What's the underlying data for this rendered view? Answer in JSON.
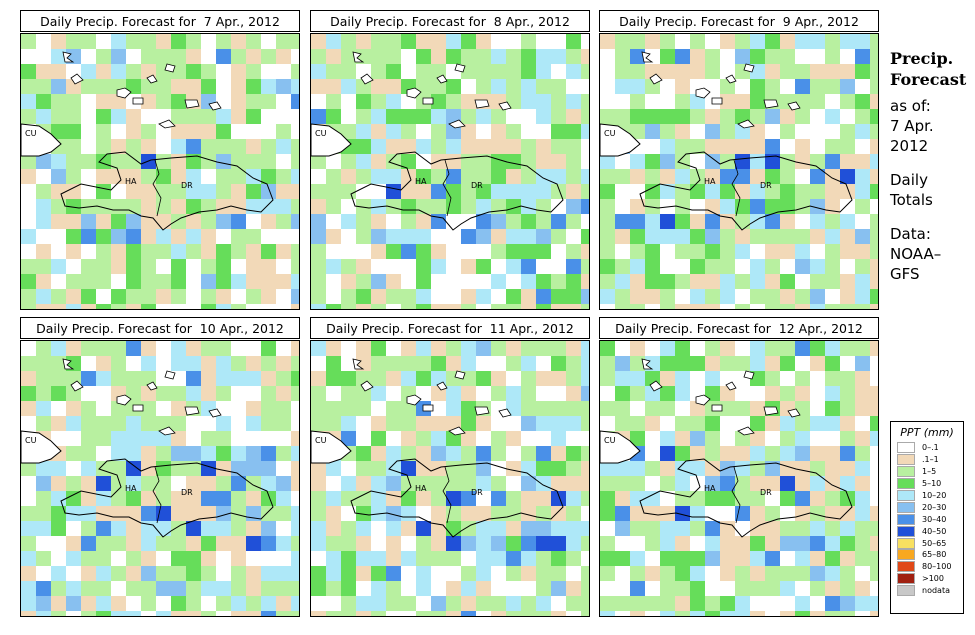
{
  "panels": [
    {
      "title": "Daily Precip. Forecast for  7 Apr., 2012",
      "seed": 7,
      "wet": 0.08
    },
    {
      "title": "Daily Precip. Forecast for  8 Apr., 2012",
      "seed": 8,
      "wet": 0.14
    },
    {
      "title": "Daily Precip. Forecast for  9 Apr., 2012",
      "seed": 9,
      "wet": 0.18
    },
    {
      "title": "Daily Precip. Forecast for  10 Apr., 2012",
      "seed": 10,
      "wet": 0.28
    },
    {
      "title": "Daily Precip. Forecast for  11 Apr., 2012",
      "seed": 11,
      "wet": 0.22
    },
    {
      "title": "Daily Precip. Forecast for  12 Apr., 2012",
      "seed": 12,
      "wet": 0.16
    }
  ],
  "map_labels": {
    "cuba": "CU",
    "haiti": "HA",
    "dominican_republic": "DR"
  },
  "sidebar": {
    "title_line1": "Precip.",
    "title_line2": "Forecast",
    "asof": "as of:",
    "date_line1": "7 Apr.",
    "date_line2": "2012",
    "totals_line1": "Daily",
    "totals_line2": "Totals",
    "data_line1": "Data:",
    "data_line2": "NOAA–",
    "data_line3": "GFS"
  },
  "legend": {
    "title": "PPT (mm)",
    "items": [
      {
        "label": "0–.1",
        "color": "#ffffff"
      },
      {
        "label": ".1–1",
        "color": "#f2d9b8"
      },
      {
        "label": "1–5",
        "color": "#b8f0a0"
      },
      {
        "label": "5–10",
        "color": "#66dd5a"
      },
      {
        "label": "10–20",
        "color": "#aee8f8"
      },
      {
        "label": "20–30",
        "color": "#88c0f0"
      },
      {
        "label": "30–40",
        "color": "#4a90e8"
      },
      {
        "label": "40–50",
        "color": "#2050d8"
      },
      {
        "label": "50–65",
        "color": "#f8e060"
      },
      {
        "label": "65–80",
        "color": "#f8a820"
      },
      {
        "label": "80–100",
        "color": "#e04818"
      },
      {
        "label": ">100",
        "color": "#a02010"
      },
      {
        "label": "nodata",
        "color": "#c8c8c8"
      }
    ]
  }
}
